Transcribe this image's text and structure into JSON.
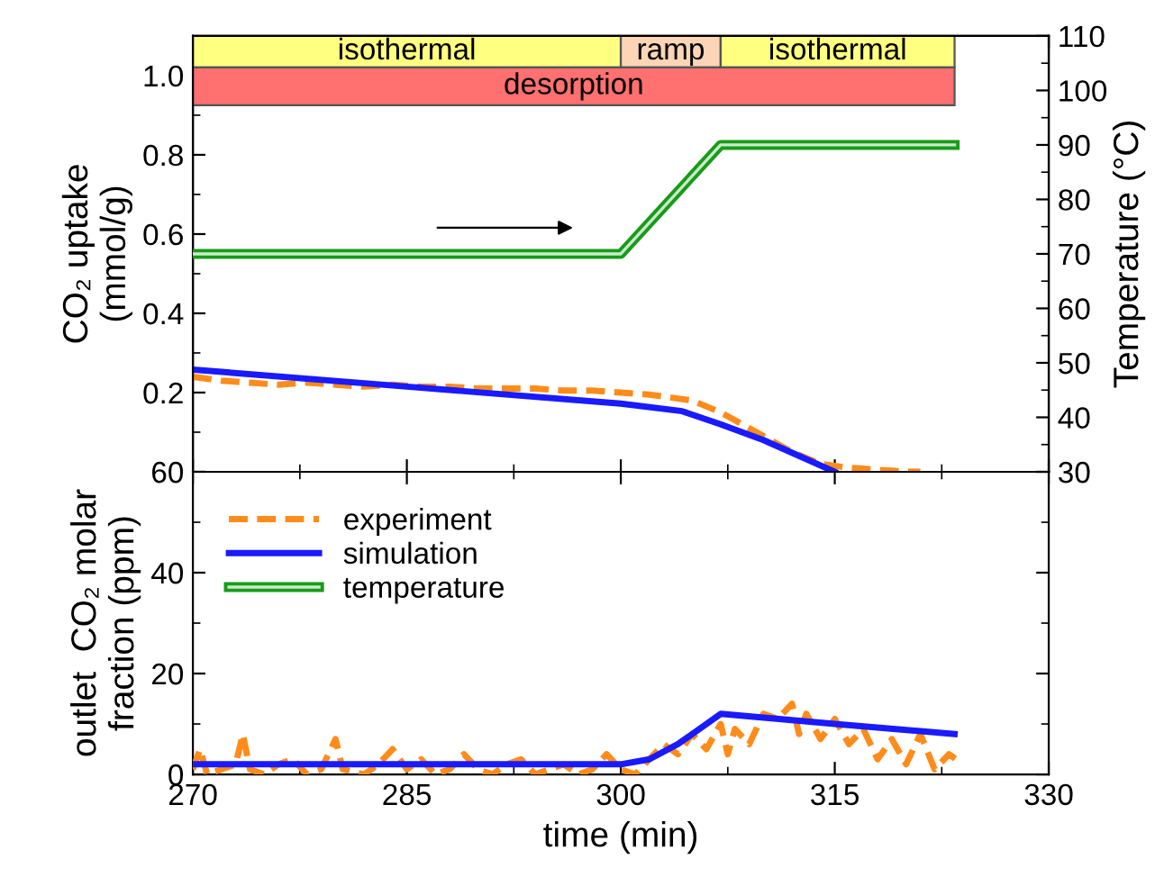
{
  "chart_data": [
    {
      "type": "line",
      "ylabel": "CO₂ uptake\n(mmol/g)",
      "y2label": "Temperature (°C)",
      "xlim": [
        270,
        330
      ],
      "xticks": [
        {
          "value": 270,
          "label": null
        },
        {
          "value": 285,
          "label": null
        },
        {
          "value": 300,
          "label": null
        },
        {
          "value": 315,
          "label": null
        },
        {
          "value": 330,
          "label": null
        }
      ],
      "ylim": [
        0,
        1.1
      ],
      "yticks": [
        {
          "value": 0,
          "label": null
        },
        0.2,
        0.4,
        0.6,
        0.8,
        {
          "value": 1.0,
          "label": "1.0"
        }
      ],
      "y2lim": [
        30,
        110
      ],
      "y2ticks": [
        30,
        40,
        50,
        60,
        70,
        80,
        90,
        100,
        110
      ],
      "tick_labels": "y",
      "legend": "bottom left",
      "grid": false,
      "bands": [
        {
          "axis": "x",
          "from": 270,
          "to": 300,
          "label": "isothermal",
          "color": "#ffff80"
        },
        {
          "axis": "x",
          "from": 300,
          "to": 307,
          "label": "ramp",
          "color": "#fbd5b5"
        },
        {
          "axis": "x",
          "from": 307,
          "to": 323.4,
          "label": "isothermal",
          "color": "#ffff80"
        },
        {
          "axis": "x",
          "from": 270,
          "to": 323.4,
          "label": "desorption",
          "color": "#ff7070"
        }
      ],
      "series": [
        {
          "name": "experiment",
          "color": "#ff8c1a",
          "line_style": "dashed",
          "x": [
            270,
            272,
            274,
            276,
            278,
            280,
            282,
            284,
            286,
            288,
            290,
            292,
            294,
            296,
            298,
            300,
            302,
            304,
            305,
            306,
            307,
            308,
            309,
            310,
            311,
            312,
            313,
            314,
            315,
            316,
            317,
            318,
            319,
            320,
            321
          ],
          "values": [
            0.24,
            0.23,
            0.225,
            0.22,
            0.225,
            0.22,
            0.215,
            0.22,
            0.215,
            0.215,
            0.21,
            0.21,
            0.21,
            0.205,
            0.205,
            0.2,
            0.195,
            0.185,
            0.18,
            0.165,
            0.15,
            0.13,
            0.11,
            0.09,
            0.07,
            0.05,
            0.035,
            0.02,
            0.015,
            0.01,
            0.008,
            0.005,
            0.003,
            0.001,
            0
          ]
        },
        {
          "name": "simulation",
          "color": "#1a1aff",
          "line_style": "solid",
          "x": [
            270,
            285,
            300,
            304.3,
            307,
            310,
            315
          ],
          "values": [
            0.258,
            0.215,
            0.172,
            0.153,
            0.12,
            0.08,
            0
          ]
        },
        {
          "name": "temperature",
          "color": "#1a9a1a",
          "line_style": "solid",
          "axis": "y2",
          "x": [
            270,
            300,
            307,
            323.4
          ],
          "values": [
            70,
            70,
            90,
            90
          ]
        }
      ]
    },
    {
      "type": "line",
      "xlabel": "time (min)",
      "ylabel": "outlet  CO₂ molar\nfraction (ppm)",
      "xlim": [
        270,
        330
      ],
      "xticks": [
        270,
        285,
        300,
        315,
        330
      ],
      "ylim": [
        0,
        60
      ],
      "yticks": [
        0,
        20,
        40,
        60
      ],
      "legend": "top left",
      "grid": false,
      "series": [
        {
          "name": "experiment",
          "color": "#ff8c1a",
          "line_style": "dashed",
          "x": [
            270,
            270.5,
            271,
            272,
            273,
            273.5,
            274,
            275,
            276,
            277,
            278,
            279,
            280,
            280.5,
            282,
            283,
            284,
            285,
            286,
            287,
            288,
            289,
            290,
            291,
            292,
            293,
            294,
            295,
            296,
            297,
            298,
            299,
            300,
            301,
            302,
            303,
            304,
            305,
            306,
            307,
            307.5,
            308,
            309,
            310,
            311,
            312,
            312.5,
            313,
            314,
            315,
            316,
            317,
            318,
            319,
            320,
            321,
            322,
            323,
            323.5
          ],
          "values": [
            1,
            5,
            0,
            1,
            2,
            8,
            1,
            0,
            2,
            3,
            0,
            1,
            7,
            1,
            0,
            2,
            5,
            1,
            3,
            0,
            1,
            4,
            1,
            0,
            2,
            3,
            0,
            1,
            2,
            0,
            1,
            4,
            1,
            0,
            3,
            6,
            4,
            8,
            5,
            10,
            4,
            9,
            6,
            12,
            11,
            14,
            8,
            12,
            7,
            11,
            6,
            9,
            3,
            7,
            2,
            8,
            1,
            4,
            3
          ]
        },
        {
          "name": "simulation",
          "color": "#1a1aff",
          "line_style": "solid",
          "x": [
            270,
            300,
            302,
            304,
            307,
            315,
            323.4
          ],
          "values": [
            2,
            2,
            3,
            6,
            12,
            10,
            8
          ]
        }
      ]
    }
  ]
}
